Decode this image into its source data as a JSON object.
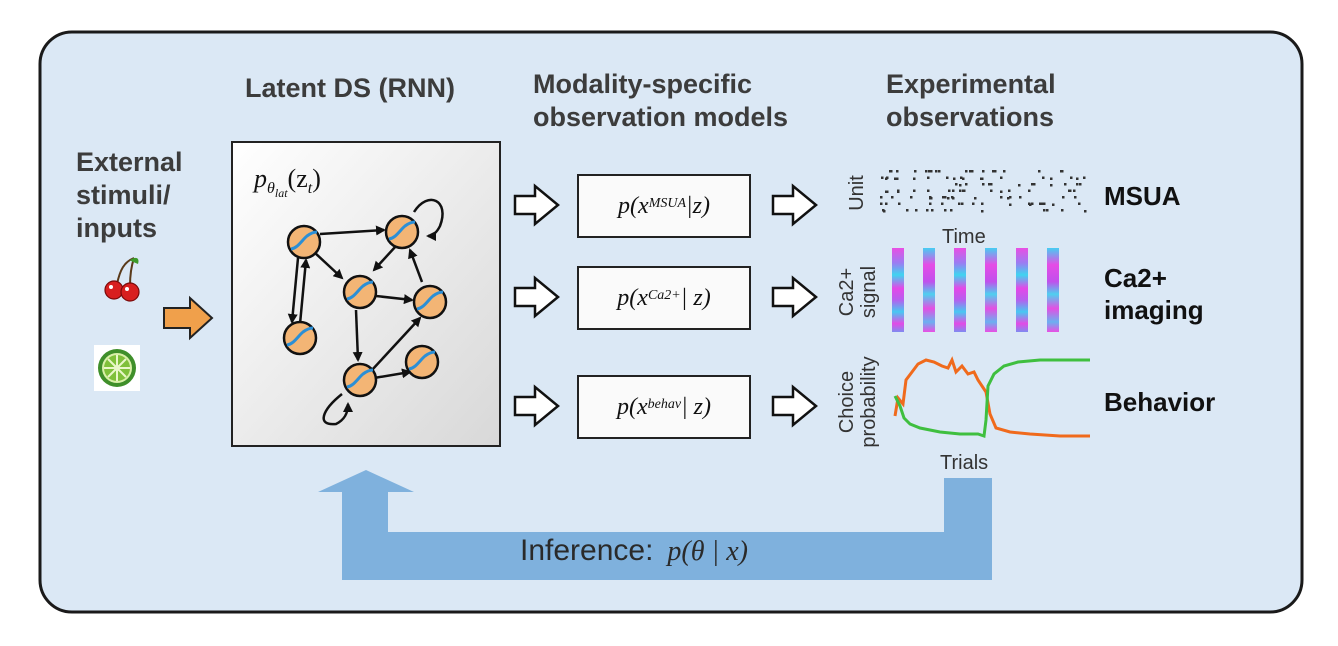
{
  "headers": {
    "external": [
      "External",
      "stimuli/",
      "inputs"
    ],
    "latent": "Latent DS (RNN)",
    "observation_models": [
      "Modality-specific",
      "observation models"
    ],
    "experimental": [
      "Experimental",
      "observations"
    ]
  },
  "latent_model": {
    "formula_base": "p",
    "formula_sub": "θ",
    "formula_subsub": "lat",
    "formula_arg": "(z",
    "formula_argsub": "t",
    "formula_close": ")"
  },
  "observation_models": [
    {
      "prefix": "p(x",
      "sup": "MSUA",
      "suffix": "|z)"
    },
    {
      "prefix": "p(x",
      "sup": "Ca2+",
      "suffix": " | z)"
    },
    {
      "prefix": "p(x",
      "sup": "behav",
      "suffix": " | z)"
    }
  ],
  "modalities": {
    "msua": {
      "label": "MSUA",
      "ylabel": "Unit",
      "xlabel": "Time"
    },
    "ca": {
      "label_lines": [
        "Ca2+",
        "imaging"
      ],
      "ylabel_lines": [
        "Ca2+",
        "signal"
      ]
    },
    "behavior": {
      "label": "Behavior",
      "ylabel_lines": [
        "Choice",
        "probability"
      ],
      "xlabel": "Trials"
    }
  },
  "inference": {
    "label": "Inference:",
    "formula": "p(θ | x)"
  },
  "icons": [
    "cherry-icon",
    "lime-icon"
  ],
  "colors": {
    "panel_bg": "#dbe8f5",
    "feedback_arrow": "#7fb1dd",
    "input_arrow": "#f0a04b",
    "node_fill": "#f3b575",
    "node_line": "#2b8fd6",
    "behavior_orange": "#f06a1c",
    "behavior_green": "#3fbf3f"
  }
}
